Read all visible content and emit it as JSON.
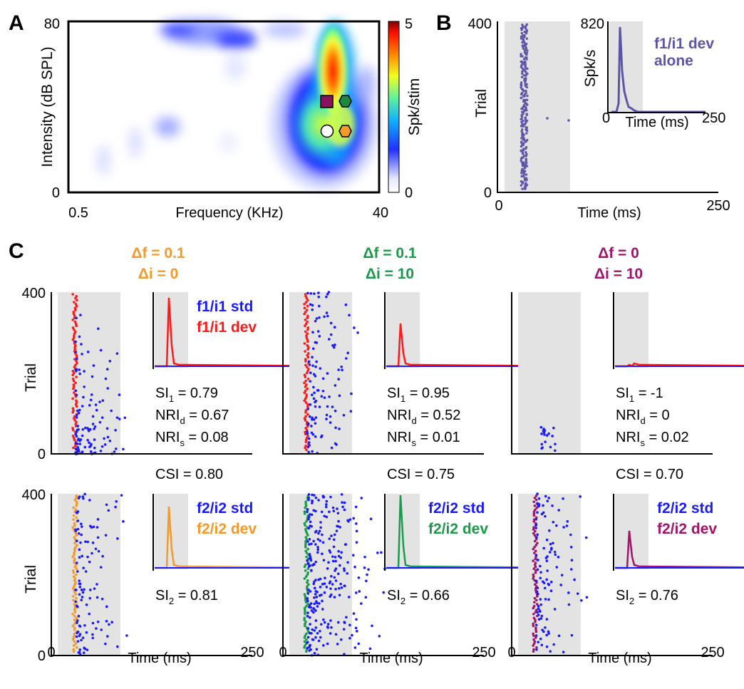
{
  "panel_letters": {
    "a": "A",
    "b": "B",
    "c": "C"
  },
  "colors": {
    "std_blue": "#1a1aff",
    "dev_red": "#ff1a1a",
    "dev_orange": "#f39a2a",
    "dev_green": "#1a9a4a",
    "dev_purple": "#a0146a",
    "alone_purple": "#5c55a8",
    "shade": "#e3e3e3"
  },
  "panel_a": {
    "ylabel": "Intensity (dB SPL)",
    "y_ticks": [
      "80",
      "0"
    ],
    "xlabel": "Frequency (KHz)",
    "x_ticks": [
      "0.5",
      "40"
    ],
    "colorbar_label": "Spk/stim",
    "colorbar_ticks": [
      "5",
      "0"
    ]
  },
  "panel_b": {
    "ylabel": "Trial",
    "y_ticks": [
      "400",
      "0"
    ],
    "xlabel": "Time (ms)",
    "x_ticks": [
      "0",
      "250"
    ],
    "inset": {
      "ylabel": "Spk/s",
      "y_tick": "820",
      "x_tick_left": "0",
      "x_tick_right": "250",
      "xlabel": "Time (ms)",
      "legend_line1": "f1/i1 dev",
      "legend_line2": "alone"
    }
  },
  "panel_c": {
    "trial_label": "Trial",
    "y_tick_top": "400",
    "y_tick_bottom": "0",
    "time_label": "Time (ms)",
    "x_tick_left": "0",
    "x_tick_right": "250",
    "columns": [
      {
        "df": "Δf = 0.1",
        "di": "Δi = 0",
        "title_color": "#f39a2a",
        "si1": "SI",
        "si1_val": " = 0.79",
        "nrid": "NRI",
        "nrid_val": " = 0.67",
        "nris": "NRI",
        "nris_val": " = 0.08",
        "csi": "CSI = 0.80",
        "si2": "SI",
        "si2_val": " = 0.81",
        "top_std": "f1/i1 std",
        "top_dev": "f1/i1 dev",
        "bot_std": "f2/i2 std",
        "bot_dev": "f2/i2 dev",
        "top_dev_color": "#ff1a1a",
        "bot_dev_color": "#f39a2a"
      },
      {
        "df": "Δf = 0.1",
        "di": "Δi = 10",
        "title_color": "#1a9a4a",
        "si1": "SI",
        "si1_val": " = 0.95",
        "nrid": "NRI",
        "nrid_val": " = 0.52",
        "nris": "NRI",
        "nris_val": " = 0.01",
        "csi": "CSI = 0.75",
        "si2": "SI",
        "si2_val": " = 0.66",
        "top_std": "",
        "top_dev": "",
        "bot_std": "f2/i2 std",
        "bot_dev": "f2/i2 dev",
        "top_dev_color": "#ff1a1a",
        "bot_dev_color": "#1a9a4a"
      },
      {
        "df": "Δf = 0",
        "di": "Δi = 10",
        "title_color": "#a0146a",
        "si1": "SI",
        "si1_val": " = -1",
        "nrid": "NRI",
        "nrid_val": " = 0",
        "nris": "NRI",
        "nris_val": " = 0.02",
        "csi": "CSI = 0.70",
        "si2": "SI",
        "si2_val": " = 0.76",
        "top_std": "",
        "top_dev": "",
        "bot_std": "f2/i2 std",
        "bot_dev": "f2/i2 dev",
        "top_dev_color": "#ff1a1a",
        "bot_dev_color": "#a0146a"
      }
    ],
    "sub": {
      "si1": "1",
      "si2": "2",
      "nrid": "d",
      "nris": "s"
    }
  }
}
